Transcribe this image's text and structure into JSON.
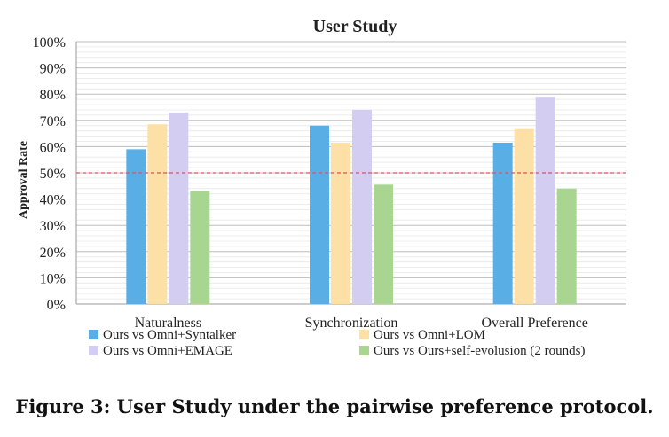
{
  "chart_data": {
    "type": "bar",
    "title": "User Study",
    "xlabel": "",
    "ylabel": "Approval Rate",
    "ylim": [
      0,
      100
    ],
    "y_unit": "%",
    "y_ticks": [
      "0%",
      "10%",
      "20%",
      "30%",
      "40%",
      "50%",
      "60%",
      "70%",
      "80%",
      "90%",
      "100%"
    ],
    "grid": true,
    "minor_grid": true,
    "legend_position": "bottom",
    "categories": [
      "Naturalness",
      "Synchronization",
      "Overall Preference"
    ],
    "series": [
      {
        "name": "Ours vs Omni+Syntalker",
        "values": [
          59,
          68,
          61.5
        ],
        "color": "#5aaee6"
      },
      {
        "name": "Ours vs Omni+LOM",
        "values": [
          68.5,
          61.5,
          67
        ],
        "color": "#fde0a6"
      },
      {
        "name": "Ours vs Omni+EMAGE",
        "values": [
          73,
          74,
          79
        ],
        "color": "#d3cdf1"
      },
      {
        "name": "Ours vs Ours+self-evolusion (2 rounds)",
        "values": [
          43,
          45.5,
          44
        ],
        "color": "#a8d690"
      }
    ],
    "reference_line": {
      "value": 50,
      "style": "dashed",
      "color": "#d9545e"
    }
  },
  "caption": "Figure 3: User Study under the pairwise preference protocol."
}
